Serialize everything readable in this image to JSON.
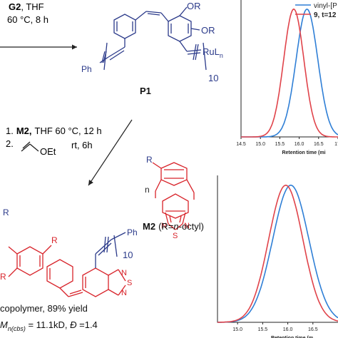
{
  "step1": {
    "reagent": "G2",
    "reagent_suffix": ", THF",
    "conditions": "60 °C, 8 h"
  },
  "p1": {
    "label": "P1",
    "sub_or_top": "OR",
    "sub_or_right": "OR",
    "ph": "Ph",
    "rul": "RuL",
    "rul_sub": "n",
    "repeat": "10"
  },
  "step2": {
    "line1_num": "1.",
    "line1_reagent": "M2,",
    "line1_rest": "THF 60 °C, 12 h",
    "line2_num": "2.",
    "line2_group": "OEt",
    "line2_rest": "rt, 6h"
  },
  "m2": {
    "r": "R",
    "n": "n",
    "n_atom": "N",
    "n_atom2": "N",
    "s_atom": "S",
    "label_bold": "M2",
    "label_rest_pre": "(R=",
    "label_italic": "n",
    "label_rest_post": "-octyl)"
  },
  "product": {
    "r_top": "R",
    "r_ring": "R",
    "r_left": "R",
    "ph": "Ph",
    "repeat": "10",
    "n_atom": "N",
    "n_atom2": "N",
    "s_atom": "S",
    "yield_text": "copolymer, 89% yield",
    "mn_prefix": "M",
    "mn_sub": "n(cbs)",
    "mn_rest": " = 11.1kD, ",
    "dispersity_symbol": "Đ",
    "dispersity_rest": " =1.4"
  },
  "legend": [
    {
      "name": "vinyl-[P",
      "color": "#2f7fd6"
    },
    {
      "name": "9, t=12",
      "color": "#e0434a"
    }
  ],
  "chart_data": [
    {
      "type": "line",
      "xlabel": "Retention time (mi",
      "ylabel": "",
      "xlim": [
        14.5,
        17.0
      ],
      "ylim": [
        0,
        1.05
      ],
      "ticks": [
        "14.5",
        "15.0",
        "15.5",
        "16.0",
        "16.5",
        "17."
      ],
      "tick_values": [
        14.5,
        15.0,
        15.5,
        16.0,
        16.5,
        17.0
      ],
      "series": [
        {
          "name": "vinyl-[P",
          "color": "#2f7fd6",
          "peak": 16.2,
          "width": 0.28
        },
        {
          "name": "9, t=12",
          "color": "#e0434a",
          "peak": 15.86,
          "width": 0.26
        }
      ]
    },
    {
      "type": "line",
      "xlabel": "Retention time (m",
      "ylabel": "",
      "xlim": [
        14.6,
        17.0
      ],
      "ylim": [
        0,
        1.05
      ],
      "ticks": [
        "15.0",
        "15.5",
        "16.0",
        "16.5"
      ],
      "tick_values": [
        15.0,
        15.5,
        16.0,
        16.5
      ],
      "series": [
        {
          "color": "#2f7fd6",
          "peak": 16.06,
          "width": 0.36
        },
        {
          "color": "#e0434a",
          "peak": 15.96,
          "width": 0.34
        }
      ]
    }
  ]
}
